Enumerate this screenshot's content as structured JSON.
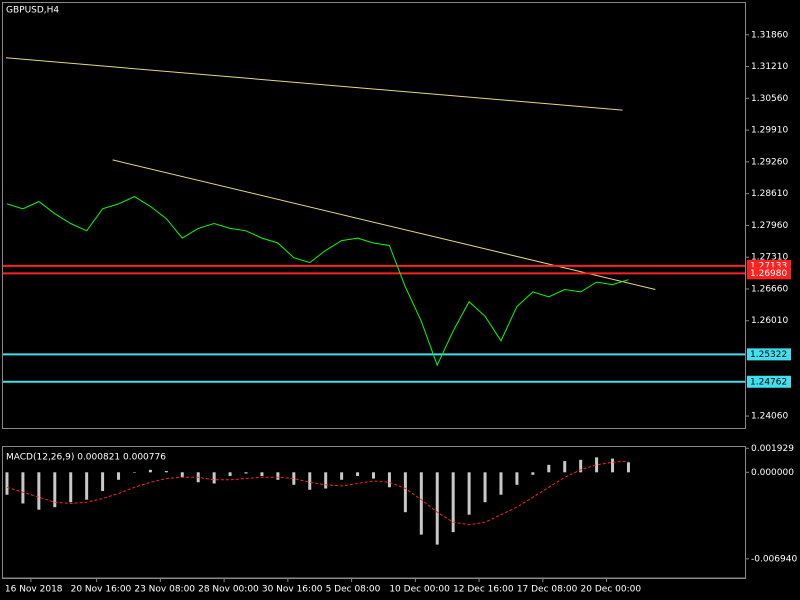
{
  "chart_data": [
    {
      "type": "line",
      "title": "GBPUSD,H4",
      "x": [
        1,
        5,
        9,
        13,
        17,
        21,
        25,
        29,
        33,
        37,
        41,
        45,
        49,
        53,
        57,
        61,
        65,
        69,
        73,
        77,
        81,
        85,
        89,
        93,
        97,
        101,
        105,
        109,
        113,
        117,
        121,
        125,
        129,
        133,
        137,
        141,
        145,
        149,
        153,
        157
      ],
      "series": [
        {
          "color": "#00ff00",
          "values": [
            1.284,
            1.283,
            1.2845,
            1.282,
            1.28,
            1.2785,
            1.283,
            1.284,
            1.2855,
            1.2835,
            1.281,
            1.277,
            1.279,
            1.28,
            1.279,
            1.2785,
            1.277,
            1.276,
            1.273,
            1.272,
            1.2745,
            1.2765,
            1.277,
            1.276,
            1.2755,
            1.267,
            1.26,
            1.251,
            1.258,
            1.264,
            1.261,
            1.256,
            1.263,
            1.266,
            1.265,
            1.2665,
            1.266,
            1.268,
            1.2675,
            1.2685
          ]
        }
      ],
      "trendlines": [
        {
          "color": "#e8d878",
          "x": [
            0.75,
            155.5
          ],
          "values": [
            1.3139,
            1.3032
          ]
        },
        {
          "color": "#e8d878",
          "x": [
            27.5,
            163.75
          ],
          "values": [
            1.293,
            1.2665
          ]
        }
      ],
      "levels": [
        {
          "value": 1.27133,
          "label": "1.27133",
          "color": "#ff2020"
        },
        {
          "value": 1.2698,
          "label": "1.26980",
          "color": "#ff2020"
        },
        {
          "value": 1.25322,
          "label": "1.25322",
          "color": "#40e0f0"
        },
        {
          "value": 1.24762,
          "label": "1.24762",
          "color": "#40e0f0"
        }
      ],
      "xlim": [
        0,
        186.25
      ],
      "xticks": [
        {
          "value": 7,
          "label": "16 Nov 2018"
        },
        {
          "value": 23.5,
          "label": "20 Nov 16:00"
        },
        {
          "value": 39.5,
          "label": "23 Nov 08:00"
        },
        {
          "value": 55.5,
          "label": "28 Nov 00:00"
        },
        {
          "value": 71.5,
          "label": "30 Nov 16:00"
        },
        {
          "value": 87.5,
          "label": "5 Dec 08:00"
        },
        {
          "value": 103.5,
          "label": "10 Dec 00:00"
        },
        {
          "value": 119.5,
          "label": "12 Dec 16:00"
        },
        {
          "value": 135.5,
          "label": "17 Dec 08:00"
        },
        {
          "value": 151.5,
          "label": "20 Dec 00:00"
        }
      ],
      "ylim": [
        1.23816,
        1.3251
      ],
      "yticks": [
        {
          "value": 1.3186,
          "label": "1.31860"
        },
        {
          "value": 1.3121,
          "label": "1.31210"
        },
        {
          "value": 1.3056,
          "label": "1.30560"
        },
        {
          "value": 1.2991,
          "label": "1.29910"
        },
        {
          "value": 1.2926,
          "label": "1.29260"
        },
        {
          "value": 1.2861,
          "label": "1.28610"
        },
        {
          "value": 1.2796,
          "label": "1.27960"
        },
        {
          "value": 1.2731,
          "label": "1.27310"
        },
        {
          "value": 1.2666,
          "label": "1.26660"
        },
        {
          "value": 1.2601,
          "label": "1.26010"
        },
        {
          "value": 1.2406,
          "label": "1.24060"
        }
      ]
    },
    {
      "type": "bar",
      "title": "MACD(12,26,9) 0.000821 0.000776",
      "x": [
        1,
        5,
        9,
        13,
        17,
        21,
        25,
        29,
        33,
        37,
        41,
        45,
        49,
        53,
        57,
        61,
        65,
        69,
        73,
        77,
        81,
        85,
        89,
        93,
        97,
        101,
        105,
        109,
        113,
        117,
        121,
        125,
        129,
        133,
        137,
        141,
        145,
        149,
        153,
        157
      ],
      "series": [
        {
          "type": "bar",
          "color": "#c8c8c8",
          "values": [
            -0.0018,
            -0.0025,
            -0.003,
            -0.0028,
            -0.0024,
            -0.0022,
            -0.0015,
            -0.0006,
            0.0,
            0.0002,
            0.0001,
            -0.0004,
            -0.0008,
            -0.0009,
            -0.0003,
            -0.0001,
            -0.0003,
            -0.0006,
            -0.001,
            -0.0014,
            -0.0013,
            -0.0006,
            -0.0003,
            -0.0005,
            -0.0012,
            -0.0032,
            -0.005,
            -0.0058,
            -0.0048,
            -0.0034,
            -0.0024,
            -0.0018,
            -0.001,
            -0.0002,
            0.0006,
            0.0009,
            0.001,
            0.0012,
            0.0011,
            0.0008
          ]
        },
        {
          "type": "line",
          "color": "#ff2020",
          "values": [
            -0.0012,
            -0.0016,
            -0.002,
            -0.0024,
            -0.0025,
            -0.0024,
            -0.0021,
            -0.0017,
            -0.0012,
            -0.0008,
            -0.0005,
            -0.0004,
            -0.0004,
            -0.0006,
            -0.0006,
            -0.0005,
            -0.0004,
            -0.0004,
            -0.0005,
            -0.0008,
            -0.001,
            -0.0011,
            -0.0009,
            -0.0007,
            -0.0008,
            -0.0013,
            -0.0022,
            -0.0032,
            -0.004,
            -0.0042,
            -0.004,
            -0.0034,
            -0.0028,
            -0.002,
            -0.0012,
            -0.0004,
            0.0002,
            0.0006,
            0.0008,
            0.0009
          ]
        }
      ],
      "xlim": [
        0,
        186.25
      ],
      "ylim": [
        -0.00848,
        0.00203
      ],
      "yticks": [
        0.001929,
        {
          "value": 0,
          "label": "0.000000"
        },
        {
          "value": -0.00694,
          "label": "-0.006940"
        }
      ]
    }
  ]
}
